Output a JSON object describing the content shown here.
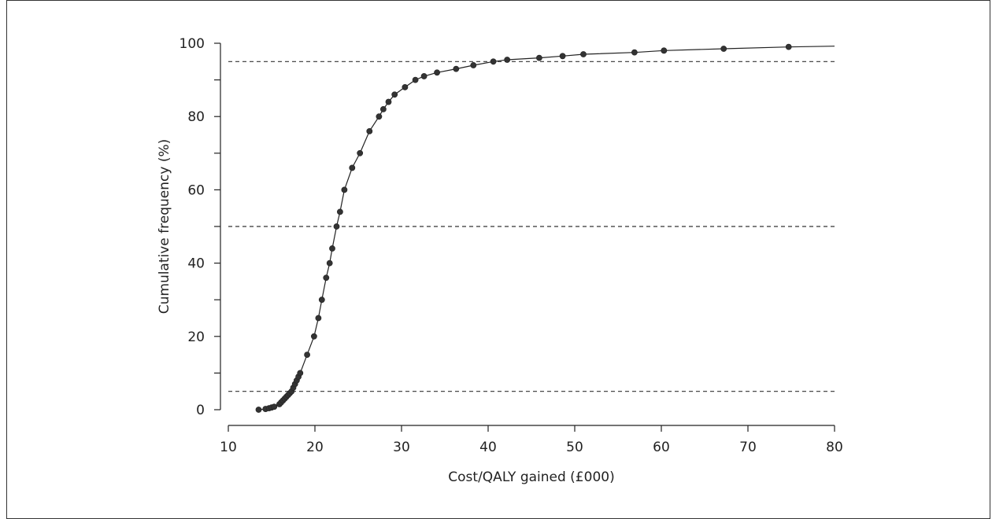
{
  "chart_data": {
    "type": "line",
    "title": "",
    "xlabel": "Cost/QALY gained (£000)",
    "ylabel": "Cumulative frequency (%)",
    "xlim": [
      10,
      80
    ],
    "ylim": [
      0,
      100
    ],
    "x_ticks": [
      10,
      20,
      30,
      40,
      50,
      60,
      70,
      80
    ],
    "y_ticks": [
      0,
      20,
      40,
      60,
      80,
      100
    ],
    "reference_lines_y": [
      5,
      50,
      95
    ],
    "grid": false,
    "legend": "none",
    "series": [
      {
        "x": [
          13.5,
          14.3,
          14.7,
          15.0,
          15.3,
          15.9,
          16.1,
          16.3,
          16.5,
          16.7,
          16.9,
          17.1,
          17.3,
          17.5,
          17.7,
          17.9,
          18.1,
          18.3,
          19.1,
          19.9,
          20.4,
          20.8,
          21.3,
          21.7,
          22.0,
          22.5,
          22.9,
          23.4,
          24.3,
          25.2,
          26.3,
          27.4,
          27.9,
          28.5,
          29.2,
          30.4,
          31.6,
          32.6,
          34.1,
          36.3,
          38.3,
          40.6,
          42.2,
          45.9,
          48.6,
          51.0,
          56.9,
          60.3,
          67.2,
          74.7
        ],
        "y": [
          0,
          0.2,
          0.4,
          0.6,
          0.8,
          1.5,
          2.0,
          2.5,
          3.0,
          3.5,
          4.0,
          4.5,
          5.0,
          6.0,
          7.0,
          8.0,
          9.0,
          10.0,
          15.0,
          20.0,
          25.0,
          30.0,
          36.0,
          40.0,
          44.0,
          50.0,
          54.0,
          60.0,
          66.0,
          70.0,
          76.0,
          80.0,
          82.0,
          84.0,
          86.0,
          88.0,
          90.0,
          91.0,
          92.0,
          93.0,
          94.0,
          95.0,
          95.5,
          96.0,
          96.5,
          97.0,
          97.5,
          98.0,
          98.5,
          99.0
        ],
        "curve_end": [
          80,
          99.2
        ]
      }
    ]
  }
}
